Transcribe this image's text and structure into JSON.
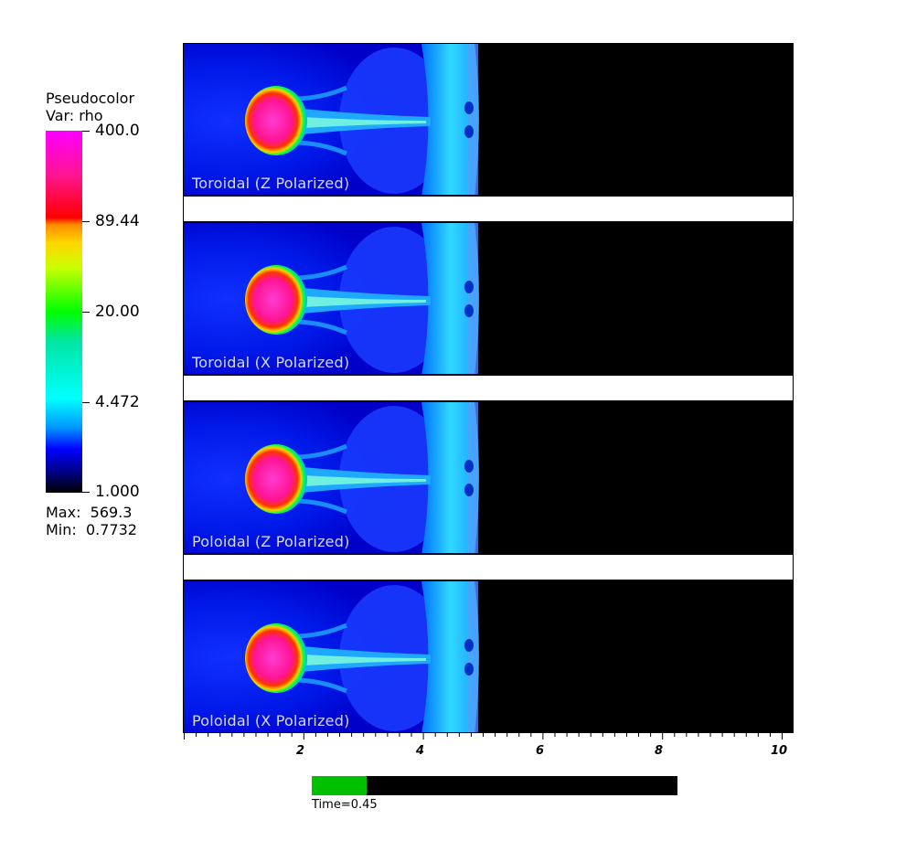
{
  "legend": {
    "title_line1": "Pseudocolor",
    "title_line2": "Var: rho",
    "ticks": [
      "400.0",
      "89.44",
      "20.00",
      "4.472",
      "1.000"
    ],
    "max_line": "Max:  569.3",
    "min_line": "Min:  0.7732"
  },
  "panels": [
    {
      "caption": "Toroidal (Z Polarized)"
    },
    {
      "caption": "Toroidal (X Polarized)"
    },
    {
      "caption": "Poloidal (Z Polarized)"
    },
    {
      "caption": "Poloidal (X Polarized)"
    }
  ],
  "axis": {
    "labels": [
      "2",
      "4",
      "6",
      "8",
      "10"
    ]
  },
  "time": {
    "label": "Time=0.45",
    "progress": 0.15
  },
  "colors": {
    "background_field": "#0000ff",
    "jet": "#44c8ff",
    "hot": "#ff1493"
  }
}
